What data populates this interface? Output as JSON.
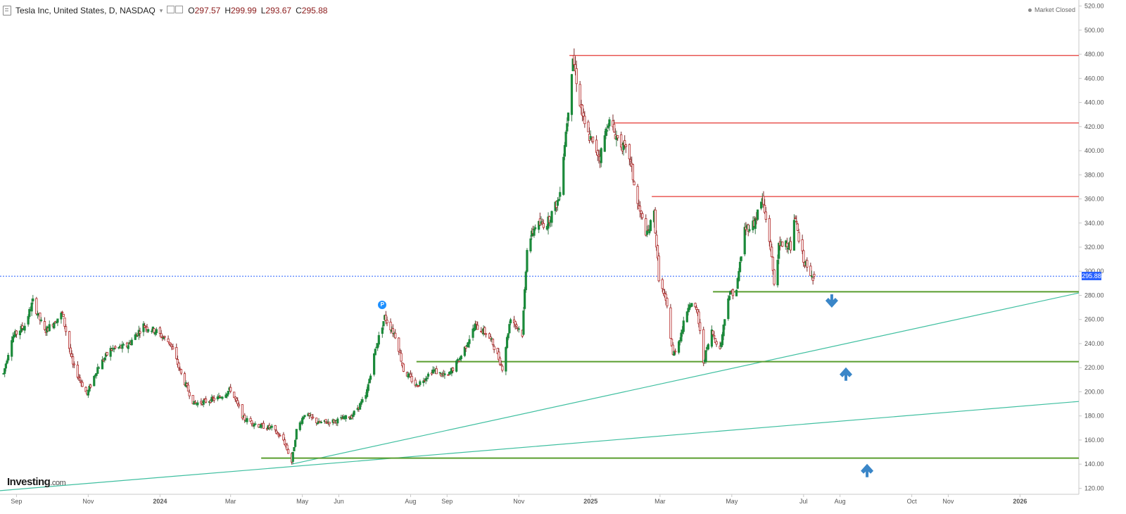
{
  "header": {
    "title": "Tesla Inc, United States, D, NASDAQ",
    "open_key": "O",
    "open": "297.57",
    "high_key": "H",
    "high": "299.99",
    "low_key": "L",
    "low": "293.67",
    "close_key": "C",
    "close": "295.88"
  },
  "market_status": "Market Closed",
  "brand": {
    "name": "Investing",
    "suffix": ".com"
  },
  "last_price_label": "295.88",
  "marker_label": "P",
  "colors": {
    "up": "#26a69a",
    "up_body": "#1b8a3a",
    "down": "#b22222",
    "resistance": "#e53935",
    "support": "#5a9e2f",
    "trendline": "#3fbfa0",
    "price_line": "#2962ff",
    "arrow": "#3a86c8"
  },
  "chart_data": {
    "type": "candlestick",
    "title": "Tesla Inc, United States, D, NASDAQ",
    "xlabel": "",
    "ylabel": "",
    "ylim": [
      115,
      525
    ],
    "y_ticks": [
      120,
      140,
      160,
      180,
      200,
      220,
      240,
      260,
      280,
      300,
      320,
      340,
      360,
      380,
      400,
      420,
      440,
      460,
      480,
      500,
      520
    ],
    "x_ticks": [
      {
        "date": "2023-09-01",
        "label": "Sep"
      },
      {
        "date": "2023-11-01",
        "label": "Nov"
      },
      {
        "date": "2024-01-01",
        "label": "2024"
      },
      {
        "date": "2024-03-01",
        "label": "Mar"
      },
      {
        "date": "2024-05-01",
        "label": "May"
      },
      {
        "date": "2024-06-01",
        "label": "Jun"
      },
      {
        "date": "2024-08-01",
        "label": "Aug"
      },
      {
        "date": "2024-09-01",
        "label": "Sep"
      },
      {
        "date": "2024-11-01",
        "label": "Nov"
      },
      {
        "date": "2025-01-01",
        "label": "2025"
      },
      {
        "date": "2025-03-01",
        "label": "Mar"
      },
      {
        "date": "2025-05-01",
        "label": "May"
      },
      {
        "date": "2025-07-01",
        "label": "Jul"
      },
      {
        "date": "2025-08-01",
        "label": "Aug"
      },
      {
        "date": "2025-10-01",
        "label": "Oct"
      },
      {
        "date": "2025-11-01",
        "label": "Nov"
      },
      {
        "date": "2026-01-01",
        "label": "2026"
      }
    ],
    "price_path": [
      [
        "2023-08-21",
        215
      ],
      [
        "2023-08-28",
        245
      ],
      [
        "2023-09-08",
        255
      ],
      [
        "2023-09-15",
        275
      ],
      [
        "2023-09-25",
        250
      ],
      [
        "2023-10-03",
        258
      ],
      [
        "2023-10-10",
        265
      ],
      [
        "2023-10-19",
        222
      ],
      [
        "2023-10-31",
        198
      ],
      [
        "2023-11-09",
        220
      ],
      [
        "2023-11-20",
        235
      ],
      [
        "2023-12-04",
        238
      ],
      [
        "2023-12-18",
        255
      ],
      [
        "2023-12-29",
        250
      ],
      [
        "2024-01-10",
        240
      ],
      [
        "2024-01-20",
        212
      ],
      [
        "2024-01-30",
        190
      ],
      [
        "2024-02-08",
        192
      ],
      [
        "2024-02-20",
        195
      ],
      [
        "2024-03-01",
        202
      ],
      [
        "2024-03-12",
        178
      ],
      [
        "2024-03-25",
        172
      ],
      [
        "2024-04-05",
        170
      ],
      [
        "2024-04-15",
        160
      ],
      [
        "2024-04-22",
        142
      ],
      [
        "2024-04-26",
        168
      ],
      [
        "2024-05-03",
        182
      ],
      [
        "2024-05-15",
        174
      ],
      [
        "2024-05-30",
        176
      ],
      [
        "2024-06-12",
        180
      ],
      [
        "2024-06-24",
        196
      ],
      [
        "2024-07-02",
        235
      ],
      [
        "2024-07-10",
        262
      ],
      [
        "2024-07-20",
        245
      ],
      [
        "2024-07-26",
        218
      ],
      [
        "2024-08-06",
        205
      ],
      [
        "2024-08-20",
        218
      ],
      [
        "2024-09-01",
        212
      ],
      [
        "2024-09-12",
        228
      ],
      [
        "2024-09-25",
        255
      ],
      [
        "2024-10-05",
        248
      ],
      [
        "2024-10-10",
        240
      ],
      [
        "2024-10-18",
        220
      ],
      [
        "2024-10-25",
        262
      ],
      [
        "2024-10-30",
        255
      ],
      [
        "2024-11-04",
        248
      ],
      [
        "2024-11-08",
        320
      ],
      [
        "2024-11-15",
        338
      ],
      [
        "2024-11-25",
        340
      ],
      [
        "2024-12-05",
        360
      ],
      [
        "2024-12-12",
        425
      ],
      [
        "2024-12-17",
        478
      ],
      [
        "2024-12-23",
        440
      ],
      [
        "2024-12-27",
        420
      ],
      [
        "2025-01-03",
        405
      ],
      [
        "2025-01-09",
        395
      ],
      [
        "2025-01-16",
        425
      ],
      [
        "2025-01-24",
        410
      ],
      [
        "2025-02-03",
        395
      ],
      [
        "2025-02-10",
        355
      ],
      [
        "2025-02-18",
        330
      ],
      [
        "2025-02-24",
        348
      ],
      [
        "2025-02-28",
        295
      ],
      [
        "2025-03-07",
        270
      ],
      [
        "2025-03-12",
        230
      ],
      [
        "2025-03-18",
        245
      ],
      [
        "2025-03-26",
        275
      ],
      [
        "2025-04-02",
        265
      ],
      [
        "2025-04-07",
        225
      ],
      [
        "2025-04-14",
        250
      ],
      [
        "2025-04-21",
        235
      ],
      [
        "2025-04-28",
        280
      ],
      [
        "2025-05-05",
        285
      ],
      [
        "2025-05-12",
        335
      ],
      [
        "2025-05-20",
        340
      ],
      [
        "2025-05-27",
        360
      ],
      [
        "2025-06-03",
        320
      ],
      [
        "2025-06-06",
        290
      ],
      [
        "2025-06-10",
        320
      ],
      [
        "2025-06-16",
        325
      ],
      [
        "2025-06-20",
        320
      ],
      [
        "2025-06-24",
        345
      ],
      [
        "2025-06-27",
        325
      ],
      [
        "2025-07-01",
        310
      ],
      [
        "2025-07-07",
        295
      ],
      [
        "2025-07-10",
        295.88
      ]
    ],
    "last_candle": {
      "date": "2025-07-10",
      "open": 297.57,
      "high": 299.99,
      "low": 293.67,
      "close": 295.88
    },
    "resistance_levels": [
      {
        "price": 479,
        "start": "2024-12-14",
        "end": "2026-02-20"
      },
      {
        "price": 423,
        "start": "2025-01-19",
        "end": "2026-02-20"
      },
      {
        "price": 362,
        "start": "2025-02-22",
        "end": "2026-02-20"
      }
    ],
    "support_levels": [
      {
        "price": 283,
        "start": "2025-04-15",
        "end": "2026-02-20"
      },
      {
        "price": 225,
        "start": "2024-08-06",
        "end": "2026-02-20"
      },
      {
        "price": 145,
        "start": "2024-03-27",
        "end": "2026-02-20"
      }
    ],
    "trendlines": [
      {
        "start": [
          "2024-04-22",
          140
        ],
        "end": [
          "2026-02-20",
          282
        ]
      },
      {
        "start": [
          "2023-08-18",
          118
        ],
        "end": [
          "2026-02-20",
          192
        ]
      }
    ],
    "current_price": 295.88,
    "signals": [
      {
        "direction": "down",
        "date": "2025-07-25",
        "price": 275
      },
      {
        "direction": "up",
        "date": "2025-08-06",
        "price": 215
      },
      {
        "direction": "up",
        "date": "2025-08-24",
        "price": 135
      }
    ],
    "marker": {
      "date": "2024-07-08",
      "price": 272
    }
  }
}
